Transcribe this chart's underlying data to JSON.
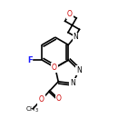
{
  "background": "#ffffff",
  "lw": 1.2,
  "figsize": [
    1.52,
    1.52
  ],
  "dpi": 100,
  "xlim": [
    0,
    100
  ],
  "ylim": [
    0,
    100
  ]
}
